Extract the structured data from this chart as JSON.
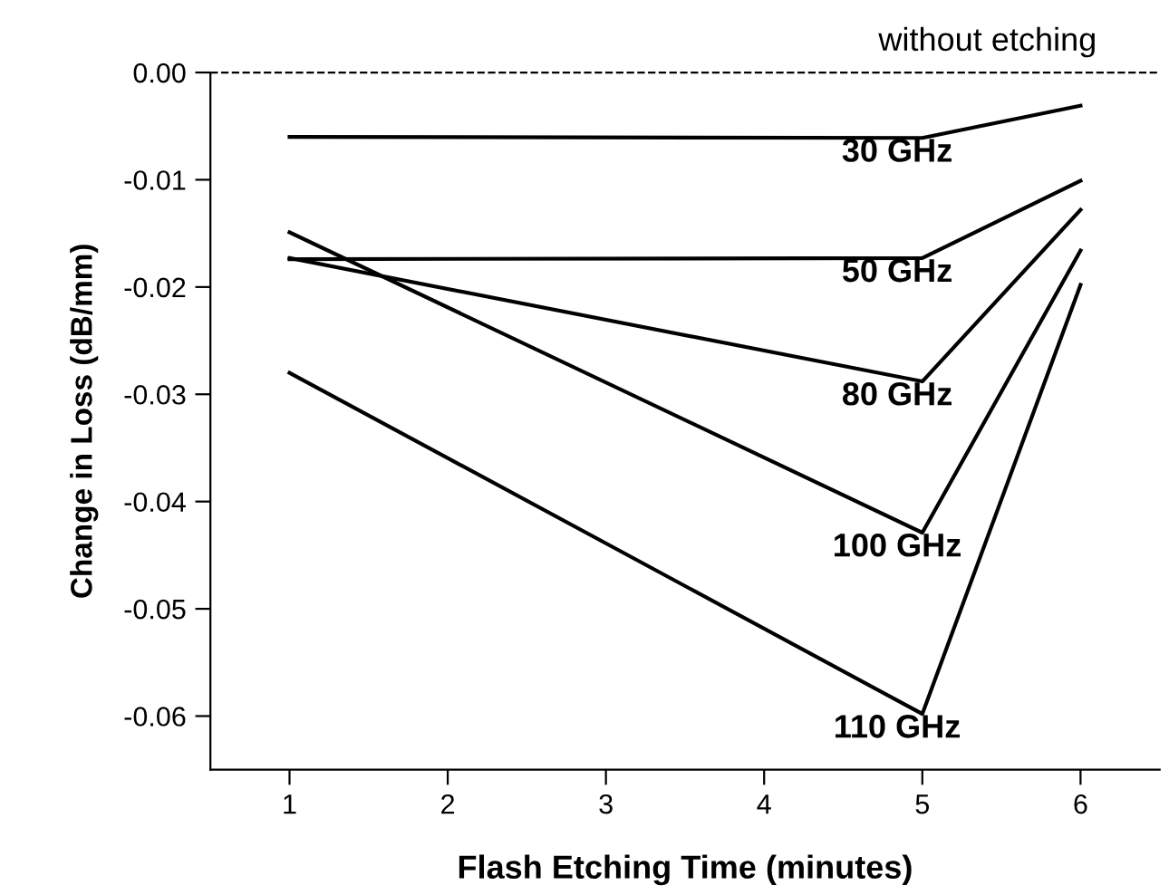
{
  "chart_data": {
    "type": "line",
    "xlabel": "Flash Etching Time (minutes)",
    "ylabel": "Change in Loss (dB/mm)",
    "x": [
      1,
      5,
      6
    ],
    "series": [
      {
        "name": "30 GHz",
        "color": "#000000",
        "values": [
          -0.006,
          -0.0061,
          -0.0031
        ]
      },
      {
        "name": "50 GHz",
        "color": "#000000",
        "values": [
          -0.0174,
          -0.0173,
          -0.0101
        ]
      },
      {
        "name": "80 GHz",
        "color": "#000000",
        "values": [
          -0.0173,
          -0.0288,
          -0.0128
        ]
      },
      {
        "name": "100 GHz",
        "color": "#000000",
        "values": [
          -0.0149,
          -0.0429,
          -0.0166
        ]
      },
      {
        "name": "110 GHz",
        "color": "#000000",
        "values": [
          -0.028,
          -0.0598,
          -0.0198
        ]
      }
    ],
    "xlim": [
      0.5,
      6.5
    ],
    "xticks": [
      1,
      2,
      3,
      4,
      5,
      6
    ],
    "ylim": [
      -0.065,
      0
    ],
    "yticks": [
      {
        "value": 0,
        "label": "0.00"
      },
      -0.01,
      -0.02,
      -0.03,
      -0.04,
      -0.05,
      -0.06
    ],
    "ref_lines": [
      {
        "axis": "y",
        "value": 0,
        "label": "without etching",
        "line_style": "dashed",
        "color": "#000000"
      }
    ],
    "grid": false,
    "legend": false,
    "marker": "none",
    "line_style": "solid"
  }
}
